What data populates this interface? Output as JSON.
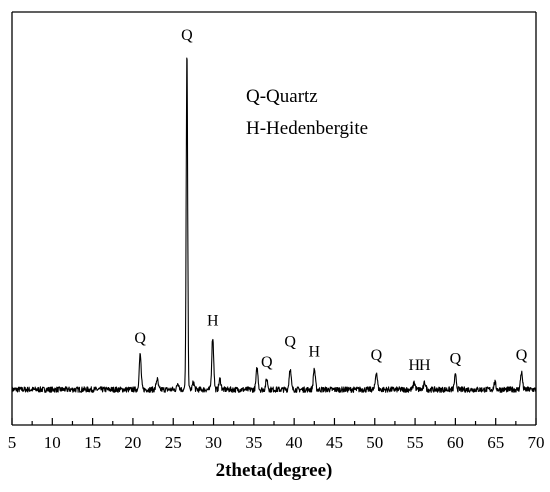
{
  "chart_data": {
    "type": "line",
    "xlabel": "2theta(degree)",
    "ylabel": "",
    "xlim": [
      5,
      70
    ],
    "ylim": [
      0,
      100
    ],
    "xticks": [
      5,
      10,
      15,
      20,
      25,
      30,
      35,
      40,
      45,
      50,
      55,
      60,
      65,
      70
    ],
    "yticks_shown": false,
    "legend_text": [
      "Q-Quartz",
      "H-Hedenbergite"
    ],
    "legend_position": "upper-center",
    "baseline": 3,
    "peaks": [
      {
        "x": 20.9,
        "y": 13,
        "label": "Q"
      },
      {
        "x": 23.0,
        "y": 6
      },
      {
        "x": 25.6,
        "y": 5
      },
      {
        "x": 26.7,
        "y": 100,
        "label": "Q"
      },
      {
        "x": 27.5,
        "y": 5
      },
      {
        "x": 29.9,
        "y": 18,
        "label": "H"
      },
      {
        "x": 30.8,
        "y": 6
      },
      {
        "x": 35.4,
        "y": 9
      },
      {
        "x": 36.6,
        "y": 6,
        "label": "Q"
      },
      {
        "x": 39.5,
        "y": 9,
        "label": "Q"
      },
      {
        "x": 42.5,
        "y": 9,
        "label": "H"
      },
      {
        "x": 50.2,
        "y": 8,
        "label": "Q"
      },
      {
        "x": 54.9,
        "y": 5,
        "label": "H"
      },
      {
        "x": 56.2,
        "y": 5,
        "label": "H"
      },
      {
        "x": 60.0,
        "y": 7,
        "label": "Q"
      },
      {
        "x": 64.9,
        "y": 5
      },
      {
        "x": 68.2,
        "y": 8,
        "label": "Q"
      }
    ],
    "series": [
      {
        "values": "profile reconstructed from peaks above"
      }
    ]
  }
}
